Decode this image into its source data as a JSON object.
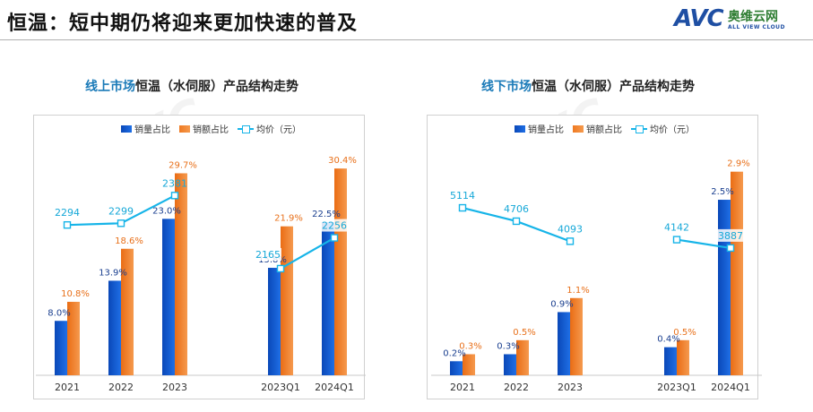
{
  "header": {
    "title": "恒温：短中期仍将迎来更加快速的普及",
    "logo_mark": "AVC",
    "logo_cn": "奥维云网",
    "logo_en": "ALL VIEW CLOUD"
  },
  "legend": {
    "volume": "销量占比",
    "amount": "销额占比",
    "price": "均价（元）"
  },
  "colors": {
    "volume_bar": "#1565d8",
    "amount_bar": "#f08030",
    "price_line": "#16b4e8",
    "volume_label": "#1a3f8f",
    "amount_label": "#e8701a",
    "price_label": "#16a8d8"
  },
  "chart_data": [
    {
      "type": "bar",
      "title_highlight": "线上市场",
      "title_rest": "恒温（水伺服）产品结构走势",
      "categories": [
        "2021",
        "2022",
        "2023",
        "2023Q1",
        "2024Q1"
      ],
      "series": [
        {
          "name": "销量占比",
          "values": [
            8.0,
            13.9,
            23.0,
            15.8,
            22.5
          ],
          "labels": [
            "8.0%",
            "13.9%",
            "23.0%",
            "15.8%",
            "22.5%"
          ]
        },
        {
          "name": "销额占比",
          "values": [
            10.8,
            18.6,
            29.7,
            21.9,
            30.4
          ],
          "labels": [
            "10.8%",
            "18.6%",
            "29.7%",
            "21.9%",
            "30.4%"
          ]
        },
        {
          "name": "均价（元）",
          "type": "line",
          "values": [
            2294,
            2299,
            2381,
            2165,
            2256
          ],
          "segments": [
            [
              0,
              2
            ],
            [
              3,
              4
            ]
          ]
        }
      ],
      "ylim_percent": [
        0,
        32
      ],
      "ylim_price": [
        1850,
        2440
      ]
    },
    {
      "type": "bar",
      "title_highlight": "线下市场",
      "title_rest": "恒温（水伺服）产品结构走势",
      "categories": [
        "2021",
        "2022",
        "2023",
        "2023Q1",
        "2024Q1"
      ],
      "series": [
        {
          "name": "销量占比",
          "values": [
            0.2,
            0.3,
            0.9,
            0.4,
            2.5
          ],
          "labels": [
            "0.2%",
            "0.3%",
            "0.9%",
            "0.4%",
            "2.5%"
          ]
        },
        {
          "name": "销额占比",
          "values": [
            0.3,
            0.5,
            1.1,
            0.5,
            2.9
          ],
          "labels": [
            "0.3%",
            "0.5%",
            "1.1%",
            "0.5%",
            "2.9%"
          ]
        },
        {
          "name": "均价（元）",
          "type": "line",
          "values": [
            5114,
            4706,
            4093,
            4142,
            3887
          ],
          "segments": [
            [
              0,
              2
            ],
            [
              3,
              4
            ]
          ]
        }
      ],
      "ylim_percent": [
        0,
        3.1
      ],
      "ylim_price": [
        0,
        6100
      ]
    }
  ]
}
